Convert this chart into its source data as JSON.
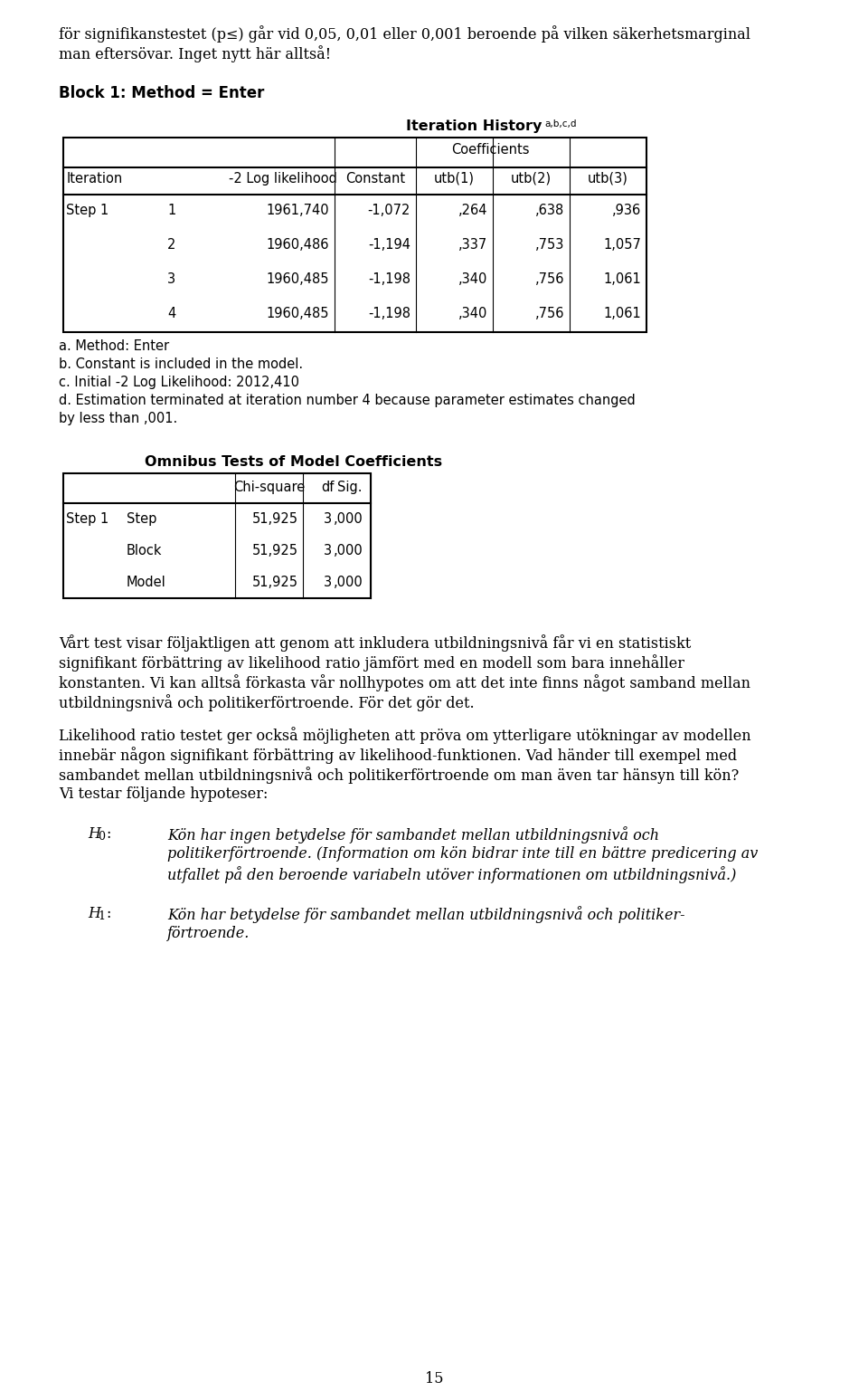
{
  "page_bg": "#ffffff",
  "intro_text": [
    "för signifikanstestet (p≤) går vid 0,05, 0,01 eller 0,001 beroende på vilken säkerhetsmarginal",
    "man eftersövar. Inget nytt här alltså!"
  ],
  "block1_title": "Block 1: Method = Enter",
  "table1_title": "Iteration History",
  "table1_title_super": "a,b,c,d",
  "table1_data": [
    [
      "Step 1",
      "1",
      "1961,740",
      "-1,072",
      ",264",
      ",638",
      ",936"
    ],
    [
      "",
      "2",
      "1960,486",
      "-1,194",
      ",337",
      ",753",
      "1,057"
    ],
    [
      "",
      "3",
      "1960,485",
      "-1,198",
      ",340",
      ",756",
      "1,061"
    ],
    [
      "",
      "4",
      "1960,485",
      "-1,198",
      ",340",
      ",756",
      "1,061"
    ]
  ],
  "footnotes": [
    "a. Method: Enter",
    "b. Constant is included in the model.",
    "c. Initial -2 Log Likelihood: 2012,410",
    "d. Estimation terminated at iteration number 4 because parameter estimates changed",
    "by less than ,001."
  ],
  "table2_title": "Omnibus Tests of Model Coefficients",
  "table2_data": [
    [
      "Step 1",
      "Step",
      "51,925",
      "3",
      ",000"
    ],
    [
      "",
      "Block",
      "51,925",
      "3",
      ",000"
    ],
    [
      "",
      "Model",
      "51,925",
      "3",
      ",000"
    ]
  ],
  "body_para1_lines": [
    "Vårt test visar följaktligen att genom att inkludera utbildningsnivå får vi en statistiskt",
    "signifikant förbättring av likelihood ratio jämfört med en modell som bara innehåller",
    "konstanten. Vi kan alltså förkasta vår nollhypotes om att det inte finns något samband mellan",
    "utbildningsnivå och politikerförtroende. För det gör det."
  ],
  "body_para2_lines": [
    "Likelihood ratio testet ger också möjligheten att pröva om ytterligare utökningar av modellen",
    "innebär någon signifikant förbättring av likelihood-funktionen. Vad händer till exempel med",
    "sambandet mellan utbildningsnivå och politikerförtroende om man även tar hänsyn till kön?",
    "Vi testar följande hypoteser:"
  ],
  "h0_lines": [
    "Kön har ingen betydelse för sambandet mellan utbildningsnivå och",
    "politikerförtroende. (Information om kön bidrar inte till en bättre predicering av",
    "utfallet på den beroende variabeln utöver informationen om utbildningsnivå.)"
  ],
  "h1_lines": [
    "Kön har betydelse för sambandet mellan utbildningsnivå och politiker-",
    "förtroende."
  ],
  "page_number": "15"
}
